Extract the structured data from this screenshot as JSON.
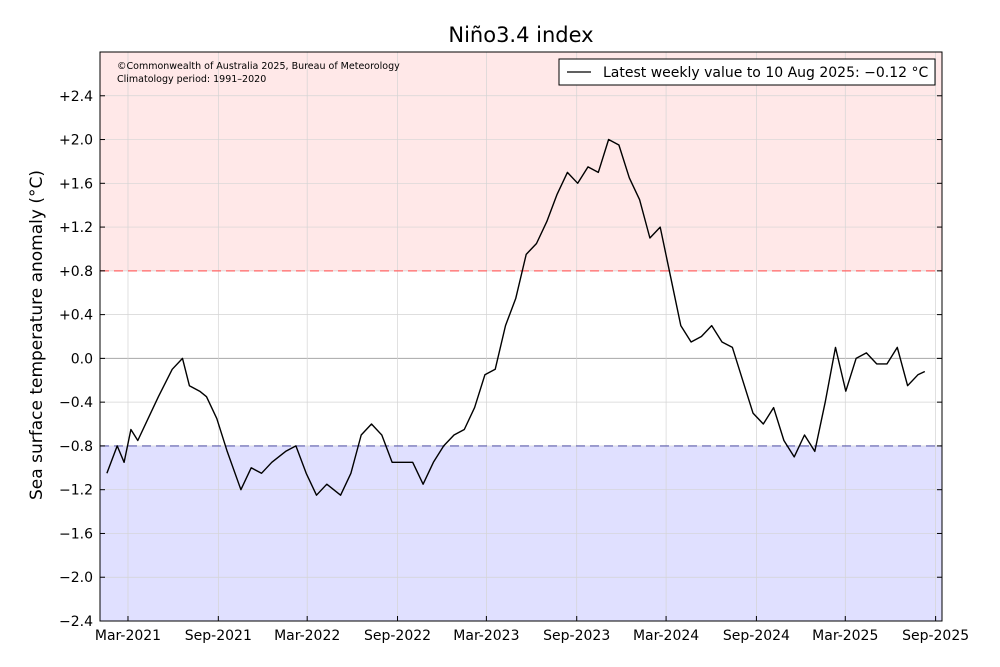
{
  "chart_data": {
    "type": "line",
    "title": "Niño3.4 index",
    "ylabel": "Sea surface temperature anomaly (°C)",
    "xlabel": "",
    "ylim": [
      -2.4,
      2.8
    ],
    "xlim": [
      "2021-01-03",
      "2025-09-14"
    ],
    "yticks": [
      -2.4,
      -2.0,
      -1.6,
      -1.2,
      -0.8,
      -0.4,
      0.0,
      0.4,
      0.8,
      1.2,
      1.6,
      2.0,
      2.4
    ],
    "ytick_labels": [
      "−2.4",
      "−2.0",
      "−1.6",
      "−1.2",
      "−0.8",
      "−0.4",
      "0.0",
      "+0.4",
      "+0.8",
      "+1.2",
      "+1.6",
      "+2.0",
      "+2.4"
    ],
    "xticks": [
      "2021-03-01",
      "2021-09-01",
      "2022-03-01",
      "2022-09-01",
      "2023-03-01",
      "2023-09-01",
      "2024-03-01",
      "2024-09-01",
      "2025-03-01",
      "2025-09-01"
    ],
    "xtick_labels": [
      "Mar-2021",
      "Sep-2021",
      "Mar-2022",
      "Sep-2022",
      "Mar-2023",
      "Sep-2023",
      "Mar-2024",
      "Sep-2024",
      "Mar-2025",
      "Sep-2025"
    ],
    "grid": true,
    "thresholds": {
      "el_nino": 0.8,
      "la_nina": -0.8
    },
    "colors": {
      "el_nino_fill": "#ffe8e8",
      "la_nina_fill": "#e0e0ff",
      "el_nino_line": "#ff6666",
      "la_nina_line": "#5c5caa",
      "series": "#000000",
      "zero_line": "#aaaaaa"
    },
    "legend": {
      "position": "top-right",
      "entries": [
        "Latest weekly value to 10 Aug 2025: −0.12 °C"
      ]
    },
    "annotations": [
      "©Commonwealth of Australia 2025, Bureau of Meteorology",
      "Climatology period: 1991–2020"
    ],
    "series": [
      {
        "x": [
          "2021-01-17",
          "2021-02-07",
          "2021-02-21",
          "2021-03-07",
          "2021-03-21",
          "2021-04-11",
          "2021-05-02",
          "2021-05-30",
          "2021-06-20",
          "2021-07-04",
          "2021-07-25",
          "2021-08-08",
          "2021-08-29",
          "2021-09-19",
          "2021-10-17",
          "2021-11-07",
          "2021-11-28",
          "2021-12-19",
          "2022-01-16",
          "2022-02-06",
          "2022-02-27",
          "2022-03-20",
          "2022-04-10",
          "2022-05-08",
          "2022-05-29",
          "2022-06-19",
          "2022-07-10",
          "2022-07-31",
          "2022-08-21",
          "2022-09-11",
          "2022-10-02",
          "2022-10-23",
          "2022-11-13",
          "2022-12-04",
          "2022-12-25",
          "2023-01-15",
          "2023-02-05",
          "2023-02-26",
          "2023-03-19",
          "2023-04-09",
          "2023-04-30",
          "2023-05-21",
          "2023-06-11",
          "2023-07-02",
          "2023-07-23",
          "2023-08-13",
          "2023-09-03",
          "2023-09-24",
          "2023-10-15",
          "2023-11-05",
          "2023-11-26",
          "2023-12-17",
          "2024-01-07",
          "2024-01-28",
          "2024-02-18",
          "2024-03-10",
          "2024-03-31",
          "2024-04-21",
          "2024-05-12",
          "2024-06-02",
          "2024-06-23",
          "2024-07-14",
          "2024-08-04",
          "2024-08-25",
          "2024-09-15",
          "2024-10-06",
          "2024-10-27",
          "2024-11-17",
          "2024-12-08",
          "2024-12-29",
          "2025-01-19",
          "2025-02-09",
          "2025-03-02",
          "2025-03-23",
          "2025-04-13",
          "2025-05-04",
          "2025-05-25",
          "2025-06-15",
          "2025-07-06",
          "2025-07-27",
          "2025-08-10"
        ],
        "values": [
          -1.05,
          -0.8,
          -0.95,
          -0.65,
          -0.75,
          -0.55,
          -0.35,
          -0.1,
          0.0,
          -0.25,
          -0.3,
          -0.35,
          -0.55,
          -0.85,
          -1.2,
          -1.0,
          -1.05,
          -0.95,
          -0.85,
          -0.8,
          -1.05,
          -1.25,
          -1.15,
          -1.25,
          -1.05,
          -0.7,
          -0.6,
          -0.7,
          -0.95,
          -0.95,
          -0.95,
          -1.15,
          -0.95,
          -0.8,
          -0.7,
          -0.65,
          -0.45,
          -0.15,
          -0.1,
          0.3,
          0.55,
          0.95,
          1.05,
          1.25,
          1.5,
          1.7,
          1.6,
          1.75,
          1.7,
          2.0,
          1.95,
          1.65,
          1.45,
          1.1,
          1.2,
          0.75,
          0.3,
          0.15,
          0.2,
          0.3,
          0.15,
          0.1,
          -0.2,
          -0.5,
          -0.6,
          -0.45,
          -0.75,
          -0.9,
          -0.7,
          -0.85,
          -0.4,
          0.1,
          -0.3,
          0.0,
          0.05,
          -0.05,
          -0.05,
          0.1,
          -0.25,
          -0.15,
          -0.12
        ]
      }
    ]
  }
}
